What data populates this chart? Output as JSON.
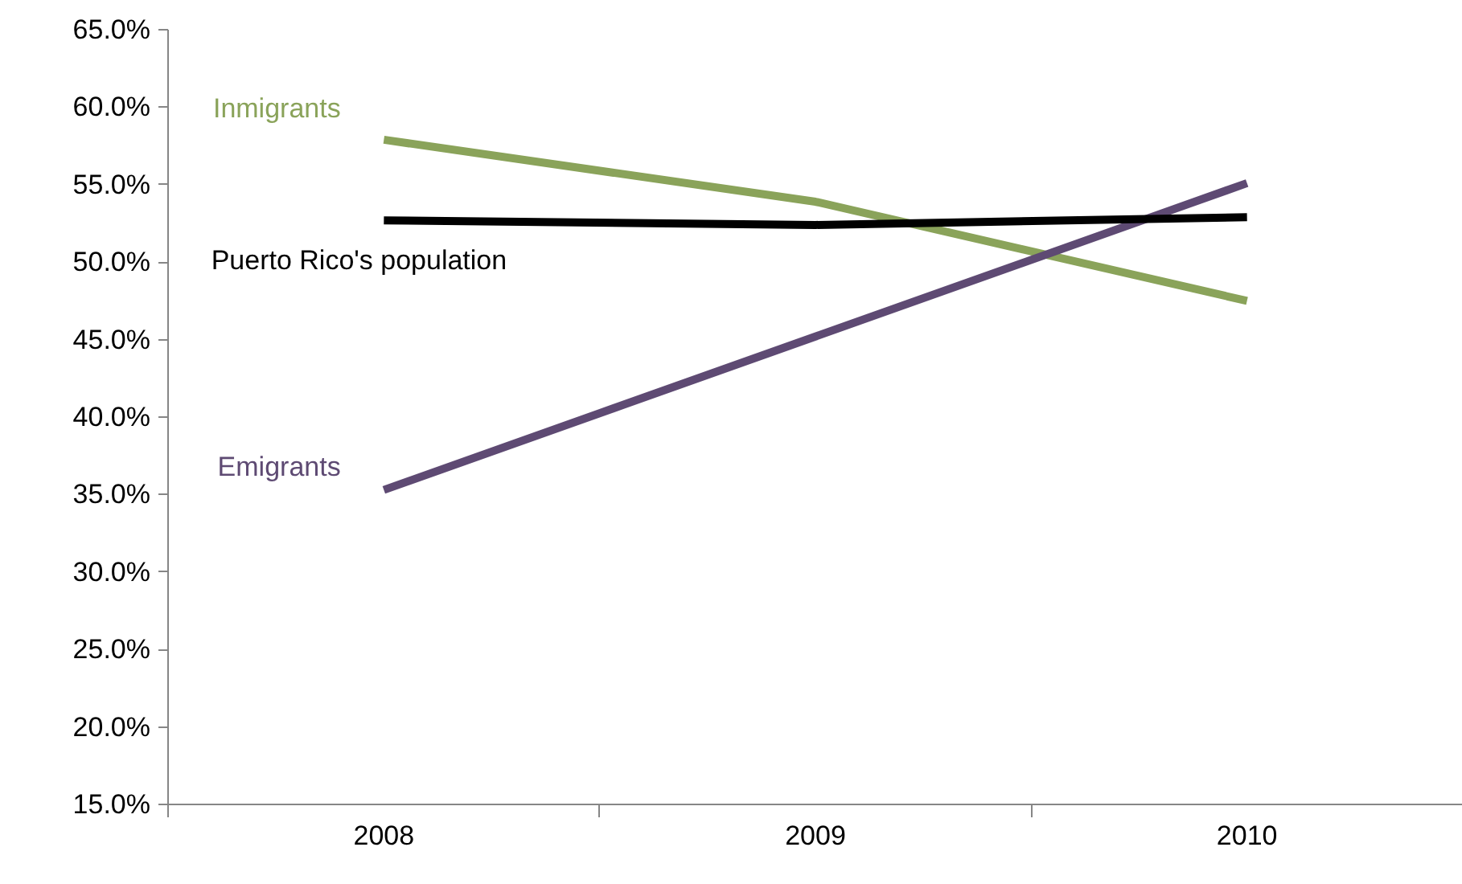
{
  "chart_data": {
    "type": "line",
    "categories": [
      "2008",
      "2009",
      "2010"
    ],
    "series": [
      {
        "name": "Inmigrants",
        "color": "#8aa35a",
        "values": [
          57.9,
          53.9,
          47.5
        ]
      },
      {
        "name": "Emigrants",
        "color": "#5e4a73",
        "values": [
          35.3,
          45.2,
          55.1
        ]
      },
      {
        "name": "Puerto Rico's population",
        "color": "#000000",
        "values": [
          52.7,
          52.4,
          52.9
        ]
      }
    ],
    "ylim": [
      15,
      65
    ],
    "yticks": [
      {
        "value": 15,
        "label": "15.0%"
      },
      {
        "value": 20,
        "label": "20.0%"
      },
      {
        "value": 25,
        "label": "25.0%"
      },
      {
        "value": 30,
        "label": "30.0%"
      },
      {
        "value": 35,
        "label": "35.0%"
      },
      {
        "value": 40,
        "label": "40.0%"
      },
      {
        "value": 45,
        "label": "45.0%"
      },
      {
        "value": 50,
        "label": "50.0%"
      },
      {
        "value": 55,
        "label": "55.0%"
      },
      {
        "value": 60,
        "label": "60.0%"
      },
      {
        "value": 65,
        "label": "65.0%"
      }
    ],
    "grid": false,
    "legend": false,
    "marker": "none",
    "line_style": "solid"
  }
}
